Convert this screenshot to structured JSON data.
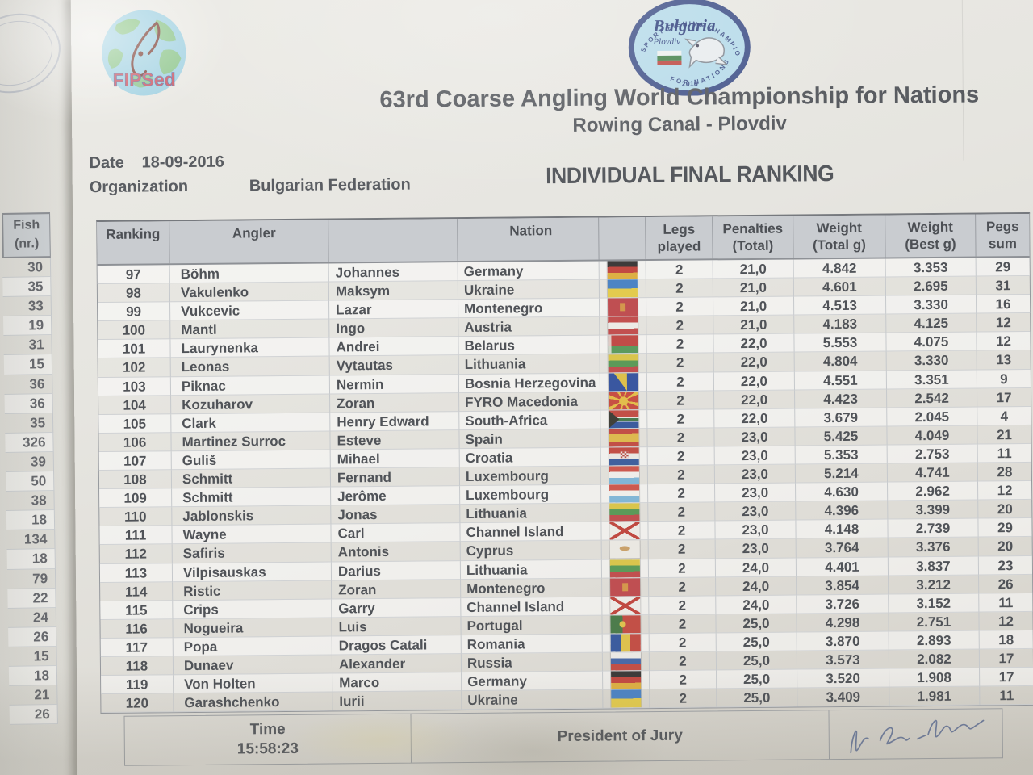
{
  "colors": {
    "paper": "#e6e5e0",
    "table_header_bg": "#c9ccd0",
    "text": "#505358",
    "fipsed_red": "#cc5a66",
    "badge_blue": "#44558e"
  },
  "logos": {
    "fipsed_text": "FIPSed",
    "bulgaria_name": "Bulgaria",
    "bulgaria_city": "Plovdiv",
    "bulgaria_year": "2016",
    "bulgaria_arc_top": "SPORT FISHING CHAMPIONSHIP",
    "bulgaria_arc_bottom": "FOR NATIONS"
  },
  "header": {
    "title": "63rd Coarse Angling World Championship for Nations",
    "subtitle": "Rowing Canal - Plovdiv",
    "date_label": "Date",
    "date_value": "18-09-2016",
    "org_label": "Organization",
    "org_value": "Bulgarian Federation",
    "ranking_title": "INDIVIDUAL FINAL RANKING"
  },
  "fish_column": {
    "header_line1": "Fish",
    "header_line2": "(nr.)",
    "values": [
      "30",
      "35",
      "33",
      "19",
      "31",
      "15",
      "36",
      "36",
      "35",
      "326",
      "39",
      "50",
      "38",
      "18",
      "134",
      "18",
      "79",
      "22",
      "24",
      "26",
      "15",
      "18",
      "21",
      "26"
    ]
  },
  "table": {
    "headers": {
      "ranking": "Ranking",
      "angler": "Angler",
      "first": "",
      "nation": "Nation",
      "flag": "",
      "legs1": "Legs",
      "legs2": "played",
      "pen1": "Penalties",
      "pen2": "(Total)",
      "wtot1": "Weight",
      "wtot2": "(Total g)",
      "wbest1": "Weight",
      "wbest2": "(Best g)",
      "pegs1": "Pegs",
      "pegs2": "sum"
    },
    "columns": [
      "ranking",
      "last",
      "first",
      "nation",
      "flag",
      "legs",
      "penalties",
      "weight_total",
      "weight_best",
      "pegs"
    ],
    "rows": [
      {
        "ranking": "97",
        "last": "Böhm",
        "first": "Johannes",
        "nation": "Germany",
        "flag": "de",
        "legs": "2",
        "penalties": "21,0",
        "weight_total": "4.842",
        "weight_best": "3.353",
        "pegs": "29"
      },
      {
        "ranking": "98",
        "last": "Vakulenko",
        "first": "Maksym",
        "nation": "Ukraine",
        "flag": "ua",
        "legs": "2",
        "penalties": "21,0",
        "weight_total": "4.601",
        "weight_best": "2.695",
        "pegs": "31"
      },
      {
        "ranking": "99",
        "last": "Vukcevic",
        "first": "Lazar",
        "nation": "Montenegro",
        "flag": "me",
        "legs": "2",
        "penalties": "21,0",
        "weight_total": "4.513",
        "weight_best": "3.330",
        "pegs": "16"
      },
      {
        "ranking": "100",
        "last": "Mantl",
        "first": "Ingo",
        "nation": "Austria",
        "flag": "at",
        "legs": "2",
        "penalties": "21,0",
        "weight_total": "4.183",
        "weight_best": "4.125",
        "pegs": "12"
      },
      {
        "ranking": "101",
        "last": "Laurynenka",
        "first": "Andrei",
        "nation": "Belarus",
        "flag": "by",
        "legs": "2",
        "penalties": "22,0",
        "weight_total": "5.553",
        "weight_best": "4.075",
        "pegs": "12"
      },
      {
        "ranking": "102",
        "last": "Leonas",
        "first": "Vytautas",
        "nation": "Lithuania",
        "flag": "lt",
        "legs": "2",
        "penalties": "22,0",
        "weight_total": "4.804",
        "weight_best": "3.330",
        "pegs": "13"
      },
      {
        "ranking": "103",
        "last": "Piknac",
        "first": "Nermin",
        "nation": "Bosnia Herzegovina",
        "flag": "ba",
        "legs": "2",
        "penalties": "22,0",
        "weight_total": "4.551",
        "weight_best": "3.351",
        "pegs": "9"
      },
      {
        "ranking": "104",
        "last": "Kozuharov",
        "first": "Zoran",
        "nation": "FYRO Macedonia",
        "flag": "mk",
        "legs": "2",
        "penalties": "22,0",
        "weight_total": "4.423",
        "weight_best": "2.542",
        "pegs": "17"
      },
      {
        "ranking": "105",
        "last": "Clark",
        "first": "Henry Edward",
        "nation": "South-Africa",
        "flag": "za",
        "legs": "2",
        "penalties": "22,0",
        "weight_total": "3.679",
        "weight_best": "2.045",
        "pegs": "4"
      },
      {
        "ranking": "106",
        "last": "Martinez Surroc",
        "first": "Esteve",
        "nation": "Spain",
        "flag": "es",
        "legs": "2",
        "penalties": "23,0",
        "weight_total": "5.425",
        "weight_best": "4.049",
        "pegs": "21"
      },
      {
        "ranking": "107",
        "last": "Guliš",
        "first": "Mihael",
        "nation": "Croatia",
        "flag": "hr",
        "legs": "2",
        "penalties": "23,0",
        "weight_total": "5.353",
        "weight_best": "2.753",
        "pegs": "11"
      },
      {
        "ranking": "108",
        "last": "Schmitt",
        "first": "Fernand",
        "nation": "Luxembourg",
        "flag": "lu",
        "legs": "2",
        "penalties": "23,0",
        "weight_total": "5.214",
        "weight_best": "4.741",
        "pegs": "28"
      },
      {
        "ranking": "109",
        "last": "Schmitt",
        "first": "Jerôme",
        "nation": "Luxembourg",
        "flag": "lu",
        "legs": "2",
        "penalties": "23,0",
        "weight_total": "4.630",
        "weight_best": "2.962",
        "pegs": "12"
      },
      {
        "ranking": "110",
        "last": "Jablonskis",
        "first": "Jonas",
        "nation": "Lithuania",
        "flag": "lt",
        "legs": "2",
        "penalties": "23,0",
        "weight_total": "4.396",
        "weight_best": "3.399",
        "pegs": "20"
      },
      {
        "ranking": "111",
        "last": "Wayne",
        "first": "Carl",
        "nation": "Channel Island",
        "flag": "ci",
        "legs": "2",
        "penalties": "23,0",
        "weight_total": "4.148",
        "weight_best": "2.739",
        "pegs": "29"
      },
      {
        "ranking": "112",
        "last": "Safiris",
        "first": "Antonis",
        "nation": "Cyprus",
        "flag": "cy",
        "legs": "2",
        "penalties": "23,0",
        "weight_total": "3.764",
        "weight_best": "3.376",
        "pegs": "20"
      },
      {
        "ranking": "113",
        "last": "Vilpisauskas",
        "first": "Darius",
        "nation": "Lithuania",
        "flag": "lt",
        "legs": "2",
        "penalties": "24,0",
        "weight_total": "4.401",
        "weight_best": "3.837",
        "pegs": "23"
      },
      {
        "ranking": "114",
        "last": "Ristic",
        "first": "Zoran",
        "nation": "Montenegro",
        "flag": "me",
        "legs": "2",
        "penalties": "24,0",
        "weight_total": "3.854",
        "weight_best": "3.212",
        "pegs": "26"
      },
      {
        "ranking": "115",
        "last": "Crips",
        "first": "Garry",
        "nation": "Channel Island",
        "flag": "ci",
        "legs": "2",
        "penalties": "24,0",
        "weight_total": "3.726",
        "weight_best": "3.152",
        "pegs": "11"
      },
      {
        "ranking": "116",
        "last": "Nogueira",
        "first": "Luis",
        "nation": "Portugal",
        "flag": "pt",
        "legs": "2",
        "penalties": "25,0",
        "weight_total": "4.298",
        "weight_best": "2.751",
        "pegs": "12"
      },
      {
        "ranking": "117",
        "last": "Popa",
        "first": "Dragos Catali",
        "nation": "Romania",
        "flag": "ro",
        "legs": "2",
        "penalties": "25,0",
        "weight_total": "3.870",
        "weight_best": "2.893",
        "pegs": "18"
      },
      {
        "ranking": "118",
        "last": "Dunaev",
        "first": "Alexander",
        "nation": "Russia",
        "flag": "ru",
        "legs": "2",
        "penalties": "25,0",
        "weight_total": "3.573",
        "weight_best": "2.082",
        "pegs": "17"
      },
      {
        "ranking": "119",
        "last": "Von Holten",
        "first": "Marco",
        "nation": "Germany",
        "flag": "de",
        "legs": "2",
        "penalties": "25,0",
        "weight_total": "3.520",
        "weight_best": "1.908",
        "pegs": "17"
      },
      {
        "ranking": "120",
        "last": "Garashchenko",
        "first": "Iurii",
        "nation": "Ukraine",
        "flag": "ua",
        "legs": "2",
        "penalties": "25,0",
        "weight_total": "3.409",
        "weight_best": "1.981",
        "pegs": "11"
      }
    ]
  },
  "footer": {
    "time_label": "Time",
    "time_value": "15:58:23",
    "president_label": "President of Jury"
  }
}
